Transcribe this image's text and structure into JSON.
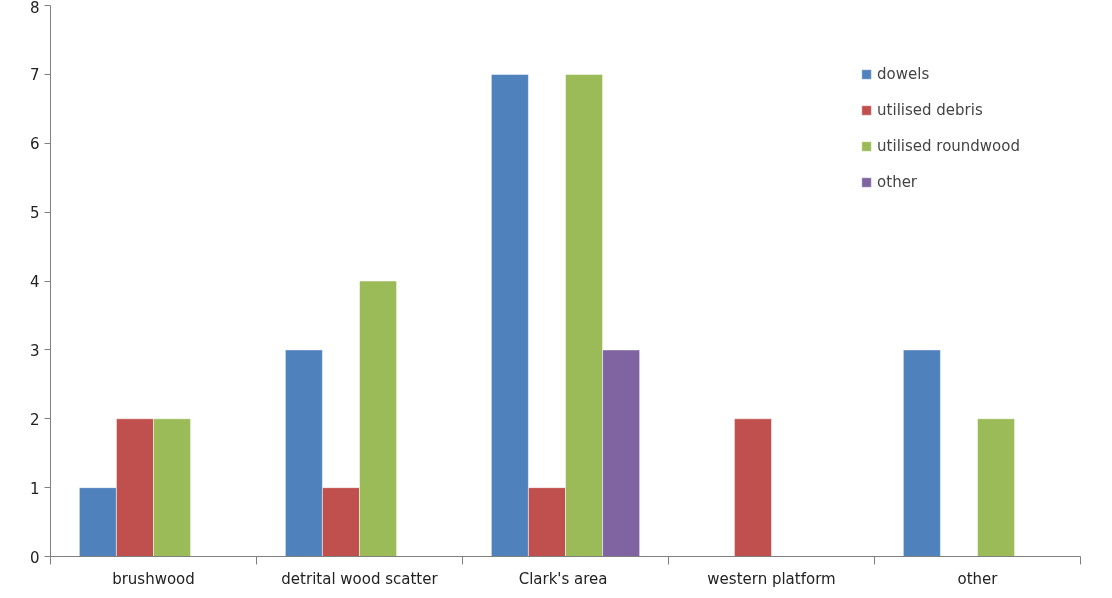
{
  "chart_data": {
    "type": "bar",
    "categories": [
      "brushwood",
      "detrital wood scatter",
      "Clark's  area",
      "western platform",
      "other"
    ],
    "series": [
      {
        "name": "dowels",
        "color": "#4f81bd",
        "values": [
          1,
          3,
          7,
          null,
          3
        ]
      },
      {
        "name": "utilised debris",
        "color": "#c0504d",
        "values": [
          2,
          1,
          1,
          2,
          null
        ]
      },
      {
        "name": "utilised roundwood",
        "color": "#9bbb59",
        "values": [
          2,
          4,
          7,
          null,
          2
        ]
      },
      {
        "name": "other",
        "color": "#8064a2",
        "values": [
          null,
          null,
          3,
          null,
          null
        ]
      }
    ],
    "ylim": [
      0,
      8
    ],
    "yticks": [
      0,
      1,
      2,
      3,
      4,
      5,
      6,
      7,
      8
    ],
    "grid": false,
    "legend": "top right"
  }
}
